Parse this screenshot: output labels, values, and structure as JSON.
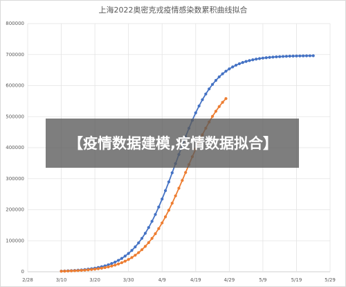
{
  "chart_data": {
    "type": "line",
    "title": "上海2022奥密克戎疫情感染数累积曲线拟合",
    "x": [
      "3/10",
      "3/11",
      "3/12",
      "3/13",
      "3/14",
      "3/15",
      "3/16",
      "3/17",
      "3/18",
      "3/19",
      "3/20",
      "3/21",
      "3/22",
      "3/23",
      "3/24",
      "3/25",
      "3/26",
      "3/27",
      "3/28",
      "3/29",
      "3/30",
      "3/31",
      "4/1",
      "4/2",
      "4/3",
      "4/4",
      "4/5",
      "4/6",
      "4/7",
      "4/8",
      "4/9",
      "4/10",
      "4/11",
      "4/12",
      "4/13",
      "4/14",
      "4/15",
      "4/16",
      "4/17",
      "4/18",
      "4/19",
      "4/20",
      "4/21",
      "4/22",
      "4/23",
      "4/24",
      "4/25",
      "4/26",
      "4/27",
      "4/28",
      "4/29",
      "4/30",
      "5/1",
      "5/2",
      "5/3",
      "5/4",
      "5/5",
      "5/6",
      "5/7",
      "5/8",
      "5/9",
      "5/10",
      "5/11",
      "5/12",
      "5/13",
      "5/14",
      "5/15",
      "5/16",
      "5/17",
      "5/18",
      "5/19",
      "5/20",
      "5/21",
      "5/22",
      "5/23",
      "5/24"
    ],
    "series": [
      {
        "color": "#4472c4",
        "values": [
          2100,
          2500,
          3000,
          3600,
          4200,
          5000,
          5900,
          7000,
          8300,
          9800,
          11600,
          13700,
          16200,
          19100,
          22500,
          26500,
          31200,
          36700,
          43100,
          50500,
          59000,
          68700,
          80200,
          93100,
          107700,
          124100,
          142400,
          162600,
          184700,
          208700,
          234400,
          261500,
          289600,
          319000,
          348500,
          378000,
          407400,
          435500,
          462600,
          488300,
          512300,
          534400,
          554600,
          572900,
          589300,
          603900,
          616800,
          628300,
          638000,
          646500,
          653900,
          660300,
          665800,
          670500,
          674500,
          677900,
          680800,
          683300,
          685400,
          687200,
          688700,
          690000,
          691100,
          692000,
          692800,
          693400,
          694000,
          694500,
          694900,
          695200,
          695500,
          695700,
          695900,
          696100,
          696200,
          696300
        ]
      },
      {
        "color": "#ed7d31",
        "values": [
          1700,
          2000,
          2400,
          2800,
          3200,
          3800,
          4500,
          5200,
          6100,
          7200,
          8400,
          9800,
          11500,
          13500,
          15700,
          18400,
          21500,
          25100,
          29200,
          34000,
          39600,
          45900,
          53200,
          61600,
          71100,
          81800,
          93900,
          107500,
          122600,
          139200,
          157400,
          177200,
          198400,
          221000,
          244600,
          269200,
          294500,
          320000,
          345500,
          370800,
          395400,
          419000,
          441600,
          462800,
          482600,
          500800,
          517400,
          532500,
          546100,
          558200,
          null,
          null,
          null,
          null,
          null,
          null,
          null,
          null,
          null,
          null,
          null,
          null,
          null,
          null,
          null,
          null,
          null,
          null,
          null,
          null,
          null,
          null,
          null,
          null,
          null,
          null
        ]
      }
    ],
    "xlim": [
      "2/28",
      "5/29"
    ],
    "xticks": [
      "2/28",
      "3/10",
      "3/20",
      "3/30",
      "4/9",
      "4/19",
      "4/29",
      "5/9",
      "5/19",
      "5/29"
    ],
    "ylim": [
      0,
      800000
    ],
    "yticks": [
      0,
      100000,
      200000,
      300000,
      400000,
      500000,
      600000,
      700000,
      800000
    ],
    "grid": true
  },
  "banner": "【疫情数据建模,疫情数据拟合】"
}
